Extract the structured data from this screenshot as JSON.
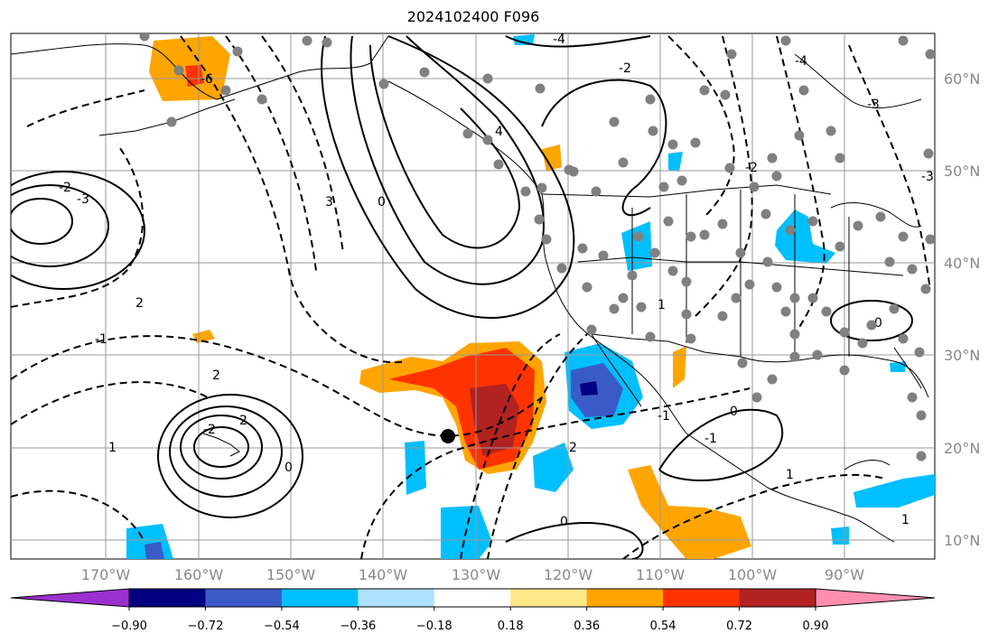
{
  "title": "2024102400 F096",
  "lon_labels": [
    "170°W",
    "160°W",
    "150°W",
    "140°W",
    "130°W",
    "120°W",
    "110°W",
    "100°W",
    "90°W"
  ],
  "lat_labels": [
    "60°N",
    "50°N",
    "40°N",
    "30°N",
    "20°N",
    "10°N"
  ],
  "colorbar": {
    "ticks": [
      "−0.90",
      "−0.72",
      "−0.54",
      "−0.36",
      "−0.18",
      "0.18",
      "0.36",
      "0.54",
      "0.72",
      "0.90"
    ],
    "colors": [
      "#9b30d0",
      "#000080",
      "#3a5bc7",
      "#00bfff",
      "#ade1ff",
      "#ffffff",
      "#ffe88a",
      "#ffa500",
      "#ff3300",
      "#b22222",
      "#ff8fb0"
    ]
  },
  "contour_labels": [
    "-6",
    "-4",
    "-3",
    "-2",
    "-2",
    "-1",
    "0",
    "0",
    "1",
    "2",
    "2",
    "2",
    "3",
    "-2",
    "4",
    "-4",
    "-3",
    "-1",
    "0",
    "1",
    "2",
    "-2",
    "0",
    "-1",
    "1",
    "-3",
    "0",
    "1"
  ],
  "marker": {
    "label": "center point"
  }
}
